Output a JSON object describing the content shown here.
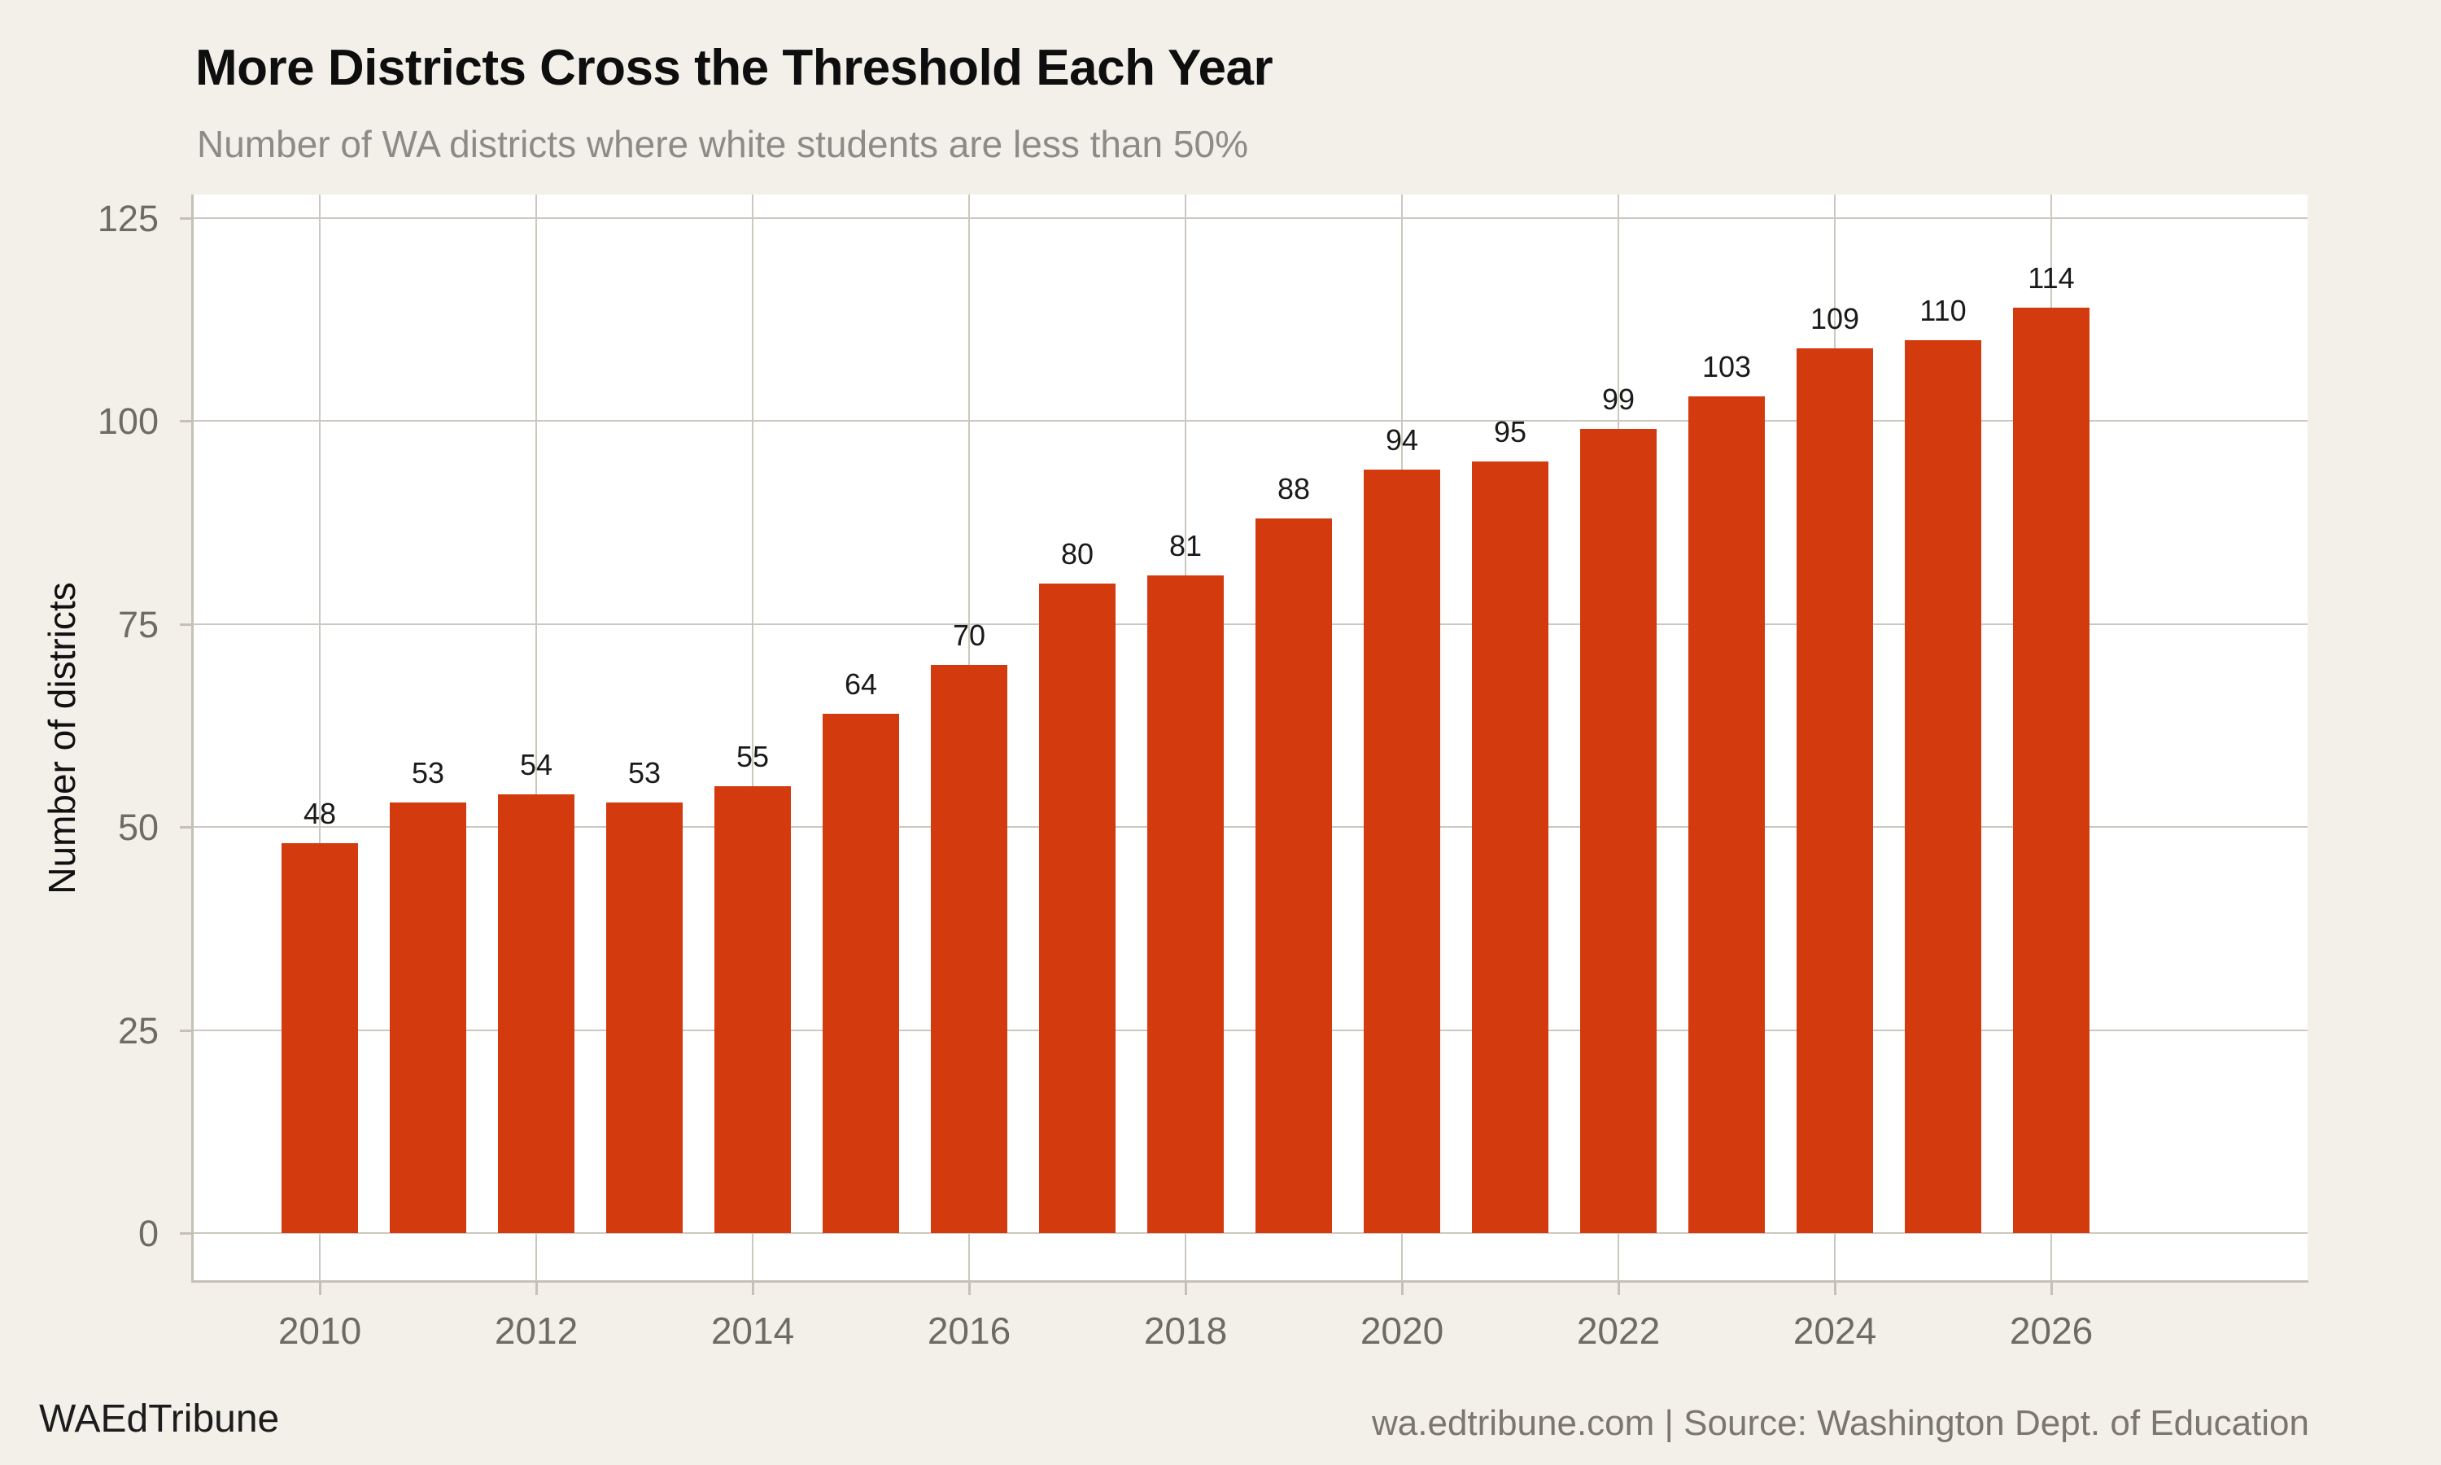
{
  "header": {
    "title": "More Districts Cross the Threshold Each Year",
    "subtitle": "Number of WA districts where white students are less than 50%"
  },
  "footer": {
    "brand": "WAEdTribune",
    "source": "wa.edtribune.com | Source: Washington Dept. of Education"
  },
  "colors": {
    "background": "#f3f0ea",
    "panel": "#ffffff",
    "bar": "#d33a0e",
    "gridline": "#cdc8bf",
    "axis": "#c6c1b7",
    "tick_label": "#6e6a64",
    "subtitle": "#8e8a85",
    "title": "#0e0e0e",
    "bar_label": "#1a1a1a",
    "brand": "#1c1c1c",
    "source_text": "#7c776e"
  },
  "chart_data": {
    "type": "bar",
    "title": "More Districts Cross the Threshold Each Year",
    "subtitle": "Number of WA districts where white students are less than 50%",
    "xlabel": "",
    "ylabel": "Number of districts",
    "categories": [
      2010,
      2011,
      2012,
      2013,
      2014,
      2015,
      2016,
      2017,
      2018,
      2019,
      2020,
      2021,
      2022,
      2023,
      2024,
      2025,
      2026
    ],
    "values": [
      48,
      53,
      54,
      53,
      55,
      64,
      70,
      80,
      81,
      88,
      94,
      95,
      99,
      103,
      109,
      110,
      114
    ],
    "ylim": [
      0,
      125
    ],
    "yticks": [
      0,
      25,
      50,
      75,
      100,
      125
    ],
    "xticks": [
      2010,
      2012,
      2014,
      2016,
      2018,
      2020,
      2022,
      2024,
      2026
    ],
    "grid": true,
    "legend": "none",
    "value_labels": true
  }
}
